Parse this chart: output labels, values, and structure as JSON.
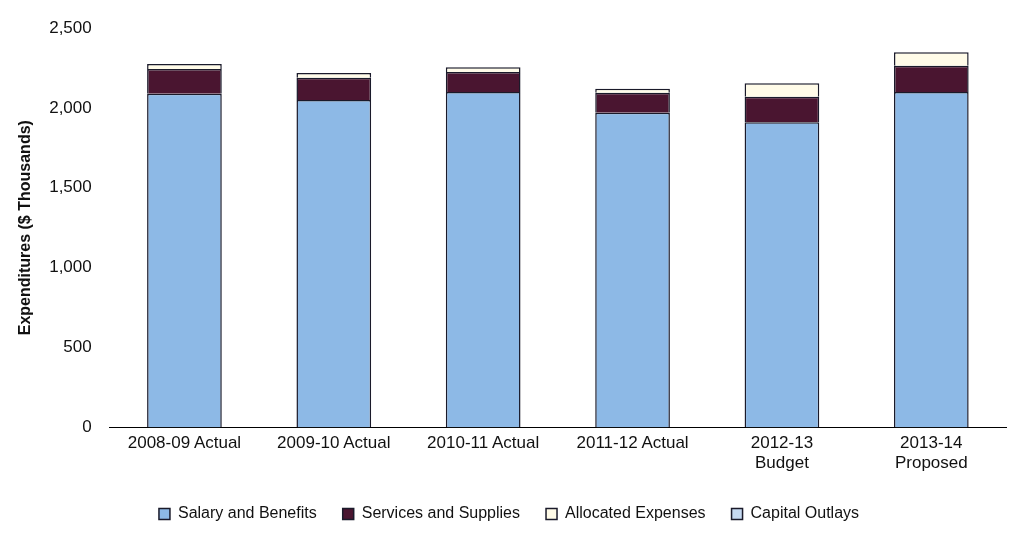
{
  "chart_data": {
    "type": "bar",
    "stacked": true,
    "ylabel": "Expenditures ($ Thousands)",
    "categories": [
      "2008-09 Actual",
      "2009-10 Actual",
      "2010-11 Actual",
      "2011-12 Actual",
      "2012-13\nBudget",
      "2013-14\nProposed"
    ],
    "series": [
      {
        "name": "Salary and Benefits",
        "color": "#8db9e6",
        "values": [
          2090,
          2050,
          2100,
          1970,
          1910,
          2100
        ]
      },
      {
        "name": "Services and Supplies",
        "color": "#4a1530",
        "values": [
          155,
          140,
          125,
          125,
          160,
          165
        ]
      },
      {
        "name": "Allocated Expenses",
        "color": "#fffbe8",
        "values": [
          30,
          30,
          30,
          25,
          85,
          85
        ]
      },
      {
        "name": "Capital Outlays",
        "color": "#c5d9f1",
        "values": [
          null,
          null,
          null,
          null,
          null,
          null
        ]
      }
    ],
    "ylim": [
      0,
      2500
    ],
    "yticks": [
      0,
      {
        "value": 500,
        "label": "500"
      },
      {
        "value": 1000,
        "label": "1,000"
      },
      {
        "value": 1500,
        "label": "1,500"
      },
      {
        "value": 2000,
        "label": "2,000"
      },
      {
        "value": 2500,
        "label": "2,500"
      }
    ],
    "grid": false,
    "legend": "bottom"
  }
}
